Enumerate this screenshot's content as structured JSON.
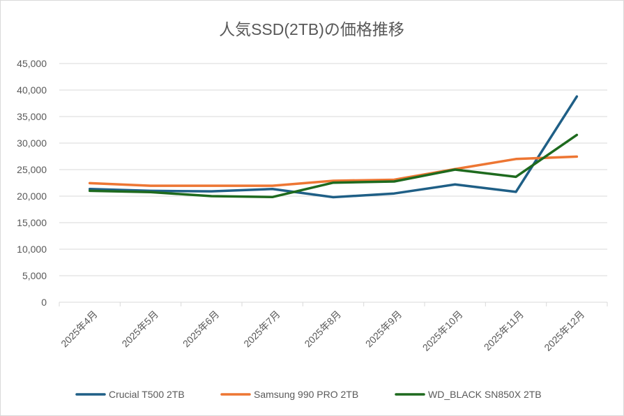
{
  "chart_data": {
    "type": "line",
    "title": "人気SSD(2TB)の価格推移",
    "xlabel": "",
    "ylabel": "",
    "categories": [
      "2025年4月",
      "2025年5月",
      "2025年6月",
      "2025年7月",
      "2025年8月",
      "2025年9月",
      "2025年10月",
      "2025年11月",
      "2025年12月"
    ],
    "ylim": [
      0,
      45000
    ],
    "yticks": [
      0,
      5000,
      10000,
      15000,
      20000,
      25000,
      30000,
      35000,
      40000,
      45000
    ],
    "ytick_labels": [
      "0",
      "5,000",
      "10,000",
      "15,000",
      "20,000",
      "25,000",
      "30,000",
      "35,000",
      "40,000",
      "45,000"
    ],
    "grid": true,
    "legend_position": "bottom",
    "series": [
      {
        "name": "Crucial T500 2TB",
        "color": "#1f5f86",
        "values": [
          21350,
          21000,
          20900,
          21350,
          19800,
          20500,
          22200,
          20800,
          38780
        ]
      },
      {
        "name": "Samsung 990 PRO 2TB",
        "color": "#ed7633",
        "values": [
          22450,
          21950,
          21950,
          21950,
          22900,
          23100,
          25100,
          27000,
          27450
        ]
      },
      {
        "name": "WD_BLACK SN850X 2TB",
        "color": "#1e6a1e",
        "values": [
          21000,
          20750,
          20000,
          19830,
          22540,
          22760,
          25000,
          23640,
          31540
        ]
      }
    ]
  }
}
